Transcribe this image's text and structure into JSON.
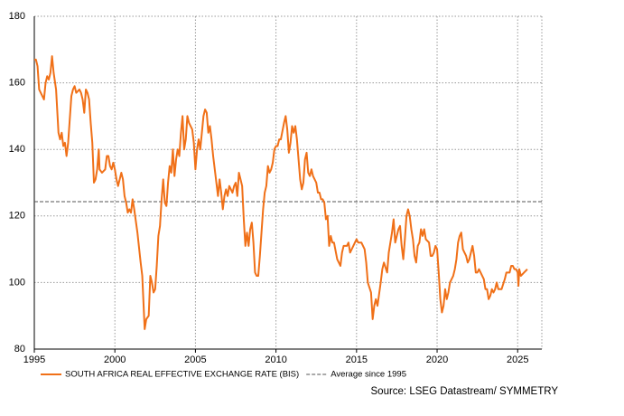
{
  "chart_data": {
    "type": "line",
    "source": "Source: LSEG Datastream/ SYMMETRY",
    "xlim": [
      1995,
      2026.5
    ],
    "xticks": [
      1995,
      2000,
      2005,
      2010,
      2015,
      2020,
      2025
    ],
    "ylim": [
      80,
      180
    ],
    "yticks": [
      80,
      100,
      120,
      140,
      160,
      180
    ],
    "grid": true,
    "reference_line": {
      "name": "Average since 1995",
      "value": 124.3,
      "color": "#555555"
    },
    "x": [
      1995.0,
      1995.1,
      1995.2,
      1995.3,
      1995.5,
      1995.6,
      1995.7,
      1995.8,
      1995.9,
      1996.0,
      1996.1,
      1996.2,
      1996.35,
      1996.5,
      1996.6,
      1996.7,
      1996.8,
      1996.9,
      1997.0,
      1997.1,
      1997.3,
      1997.4,
      1997.5,
      1997.6,
      1997.8,
      1997.9,
      1998.0,
      1998.1,
      1998.2,
      1998.3,
      1998.4,
      1998.5,
      1998.6,
      1998.7,
      1998.8,
      1998.9,
      1999.0,
      1999.05,
      1999.2,
      1999.4,
      1999.5,
      1999.6,
      1999.7,
      1999.8,
      1999.9,
      2000.0,
      2000.1,
      2000.2,
      2000.3,
      2000.4,
      2000.5,
      2000.6,
      2000.7,
      2000.8,
      2000.9,
      2001.0,
      2001.1,
      2001.2,
      2001.4,
      2001.6,
      2001.7,
      2001.85,
      2001.95,
      2002.1,
      2002.2,
      2002.3,
      2002.4,
      2002.5,
      2002.6,
      2002.7,
      2002.8,
      2002.9,
      2003.0,
      2003.1,
      2003.2,
      2003.3,
      2003.4,
      2003.5,
      2003.6,
      2003.7,
      2003.8,
      2003.9,
      2004.0,
      2004.1,
      2004.2,
      2004.3,
      2004.4,
      2004.5,
      2004.6,
      2004.7,
      2004.8,
      2004.9,
      2005.0,
      2005.1,
      2005.2,
      2005.3,
      2005.4,
      2005.5,
      2005.6,
      2005.7,
      2005.8,
      2005.9,
      2006.0,
      2006.1,
      2006.3,
      2006.4,
      2006.5,
      2006.6,
      2006.7,
      2006.8,
      2006.9,
      2007.0,
      2007.1,
      2007.3,
      2007.4,
      2007.5,
      2007.6,
      2007.7,
      2007.8,
      2007.9,
      2008.0,
      2008.1,
      2008.2,
      2008.3,
      2008.4,
      2008.5,
      2008.6,
      2008.7,
      2008.8,
      2008.9,
      2009.0,
      2009.2,
      2009.3,
      2009.4,
      2009.5,
      2009.6,
      2009.7,
      2009.8,
      2009.9,
      2010.0,
      2010.1,
      2010.2,
      2010.3,
      2010.5,
      2010.6,
      2010.7,
      2010.8,
      2010.9,
      2011.0,
      2011.1,
      2011.2,
      2011.3,
      2011.4,
      2011.5,
      2011.6,
      2011.7,
      2011.8,
      2011.9,
      2012.0,
      2012.1,
      2012.2,
      2012.3,
      2012.5,
      2012.6,
      2012.7,
      2012.8,
      2012.9,
      2013.0,
      2013.1,
      2013.2,
      2013.3,
      2013.4,
      2013.5,
      2013.6,
      2013.8,
      2013.9,
      2014.0,
      2014.1,
      2014.2,
      2014.4,
      2014.5,
      2014.6,
      2014.8,
      2014.9,
      2015.0,
      2015.1,
      2015.3,
      2015.5,
      2015.6,
      2015.7,
      2015.9,
      2016.0,
      2016.1,
      2016.2,
      2016.3,
      2016.5,
      2016.6,
      2016.7,
      2016.9,
      2017.0,
      2017.1,
      2017.2,
      2017.3,
      2017.4,
      2017.5,
      2017.6,
      2017.7,
      2017.8,
      2017.9,
      2018.0,
      2018.1,
      2018.2,
      2018.3,
      2018.4,
      2018.5,
      2018.6,
      2018.7,
      2018.8,
      2018.9,
      2019.0,
      2019.1,
      2019.2,
      2019.3,
      2019.5,
      2019.6,
      2019.7,
      2019.8,
      2019.9,
      2020.0,
      2020.1,
      2020.2,
      2020.3,
      2020.4,
      2020.5,
      2020.6,
      2020.7,
      2020.8,
      2020.9,
      2021.0,
      2021.1,
      2021.2,
      2021.3,
      2021.4,
      2021.5,
      2021.6,
      2021.7,
      2021.8,
      2021.9,
      2022.0,
      2022.1,
      2022.2,
      2022.3,
      2022.4,
      2022.5,
      2022.6,
      2022.7,
      2022.9,
      2023.0,
      2023.1,
      2023.2,
      2023.3,
      2023.4,
      2023.5,
      2023.6,
      2023.7,
      2023.8,
      2023.9,
      2024.0,
      2024.2,
      2024.3,
      2024.5,
      2024.6,
      2024.7,
      2024.8,
      2024.9,
      2025.0,
      2025.05,
      2025.1,
      2025.2,
      2025.4,
      2025.6
    ],
    "series": [
      {
        "name": "SOUTH AFRICA REAL EFFECTIVE EXCHANGE RATE (BIS)",
        "color": "#f07018",
        "values": [
          167,
          167,
          165,
          158,
          156,
          155,
          160,
          162,
          161,
          163,
          168,
          163,
          158,
          145,
          143,
          145,
          141,
          142,
          138,
          142,
          156,
          158,
          159,
          157,
          158,
          157,
          155,
          151,
          158,
          157,
          155,
          148,
          142,
          130,
          131,
          134,
          140,
          134,
          133,
          134,
          138,
          138,
          135,
          134,
          136,
          134,
          131,
          129,
          131,
          133,
          131,
          126,
          124,
          121,
          122,
          121,
          125,
          122,
          115,
          106,
          102,
          86,
          89,
          90,
          102,
          100,
          97,
          98,
          105,
          114,
          117,
          125,
          131,
          124,
          123,
          130,
          135,
          133,
          140,
          132,
          137,
          140,
          138,
          145,
          150,
          140,
          143,
          150,
          148,
          147,
          146,
          142,
          134,
          140,
          143,
          140,
          145,
          150,
          152,
          151,
          145,
          147,
          143,
          138,
          130,
          126,
          131,
          127,
          122,
          126,
          128,
          126,
          129,
          127,
          129,
          130,
          126,
          133,
          131,
          129,
          119,
          111,
          115,
          111,
          116,
          118,
          112,
          103,
          102,
          102,
          108,
          122,
          127,
          129,
          135,
          133,
          134,
          136,
          140,
          141,
          141,
          143,
          143,
          148,
          150,
          146,
          139,
          142,
          147,
          145,
          147,
          143,
          137,
          131,
          128,
          130,
          137,
          139,
          133,
          132,
          134,
          132,
          130,
          127,
          127,
          125,
          125,
          124,
          119,
          120,
          111,
          114,
          112,
          112,
          107,
          106,
          105,
          109,
          111,
          111,
          112,
          109,
          111,
          112,
          113,
          112,
          112,
          110,
          106,
          100,
          97,
          89,
          93,
          95,
          93,
          100,
          104,
          106,
          103,
          109,
          112,
          115,
          119,
          112,
          114,
          116,
          117,
          111,
          107,
          113,
          120,
          122,
          120,
          116,
          113,
          108,
          106,
          111,
          112,
          116,
          114,
          116,
          113,
          112,
          108,
          108,
          109,
          111,
          110,
          103,
          95,
          91,
          93,
          98,
          95,
          97,
          100,
          101,
          102,
          104,
          107,
          112,
          114,
          115,
          110,
          109,
          108,
          106,
          107,
          109,
          111,
          108,
          103,
          103,
          104,
          103,
          101,
          98,
          98,
          95,
          96,
          98,
          97,
          98,
          100,
          98,
          98,
          98,
          101,
          103,
          103,
          105,
          105,
          104,
          104,
          103,
          99,
          104,
          102,
          103,
          104
        ]
      }
    ]
  }
}
